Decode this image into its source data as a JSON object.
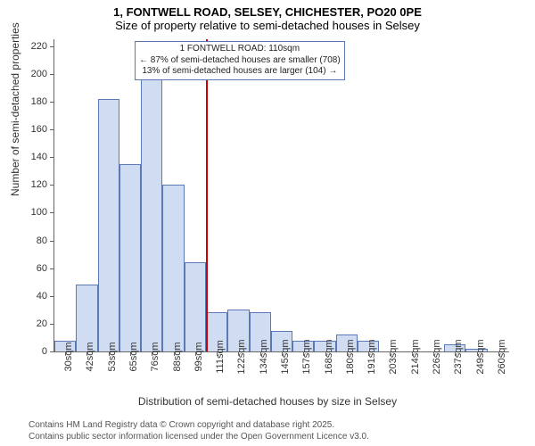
{
  "title_line1": "1, FONTWELL ROAD, SELSEY, CHICHESTER, PO20 0PE",
  "title_line2": "Size of property relative to semi-detached houses in Selsey",
  "ylabel": "Number of semi-detached properties",
  "xlabel": "Distribution of semi-detached houses by size in Selsey",
  "chart": {
    "type": "histogram",
    "bar_color": "#cfdcf2",
    "bar_border_color": "#5b7ab5",
    "marker_line_color": "#cc0000",
    "background_color": "#ffffff",
    "axis_color": "#666666",
    "ymin": 0,
    "ymax": 225,
    "ytick_start": 0,
    "ytick_step": 20,
    "ytick_end": 220,
    "x_categories": [
      "30sqm",
      "42sqm",
      "53sqm",
      "65sqm",
      "76sqm",
      "88sqm",
      "99sqm",
      "111sqm",
      "122sqm",
      "134sqm",
      "145sqm",
      "157sqm",
      "168sqm",
      "180sqm",
      "191sqm",
      "203sqm",
      "214sqm",
      "226sqm",
      "237sqm",
      "249sqm",
      "260sqm"
    ],
    "values": [
      8,
      48,
      182,
      135,
      205,
      120,
      64,
      28,
      30,
      28,
      15,
      8,
      8,
      12,
      8,
      0,
      0,
      0,
      5,
      2,
      0
    ],
    "marker_index": 7,
    "annotation": {
      "lines": [
        "1 FONTWELL ROAD: 110sqm",
        "← 87% of semi-detached houses are smaller (708)",
        "13% of semi-detached houses are larger (104) →"
      ],
      "border_color": "#5b7ab5",
      "font_size": 10
    }
  },
  "footer_line1": "Contains HM Land Registry data © Crown copyright and database right 2025.",
  "footer_line2": "Contains public sector information licensed under the Open Government Licence v3.0."
}
